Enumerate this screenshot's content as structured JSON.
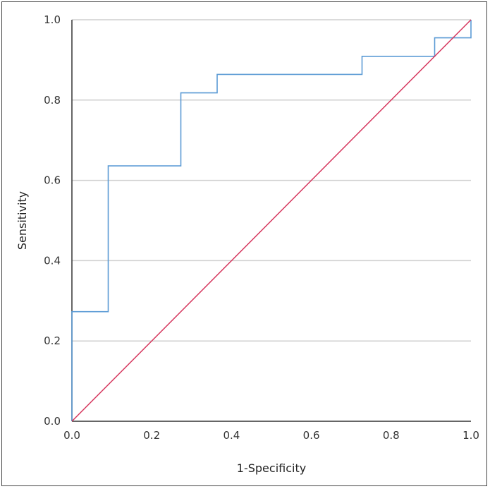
{
  "chart_data": {
    "type": "line",
    "title": "",
    "xlabel": "1-Specificity",
    "ylabel": "Sensitivity",
    "xlim": [
      0,
      1
    ],
    "ylim": [
      0,
      1
    ],
    "x_ticks": [
      "0.0",
      "0.2",
      "0.4",
      "0.6",
      "0.8",
      "1.0"
    ],
    "y_ticks": [
      "0.0",
      "0.2",
      "0.4",
      "0.6",
      "0.8",
      "1.0"
    ],
    "grid": "horizontal",
    "legend": "none",
    "series": [
      {
        "style": "step",
        "color": "#5b9bd5",
        "x": [
          0.0,
          0.0,
          0.091,
          0.091,
          0.273,
          0.273,
          0.364,
          0.364,
          0.727,
          0.727,
          0.909,
          0.909,
          1.0,
          1.0
        ],
        "y": [
          0.0,
          0.273,
          0.273,
          0.636,
          0.636,
          0.818,
          0.818,
          0.864,
          0.864,
          0.909,
          0.909,
          0.955,
          0.955,
          1.0
        ]
      },
      {
        "style": "line",
        "color": "#d6375e",
        "x": [
          0.0,
          1.0
        ],
        "y": [
          0.0,
          1.0
        ]
      }
    ]
  }
}
